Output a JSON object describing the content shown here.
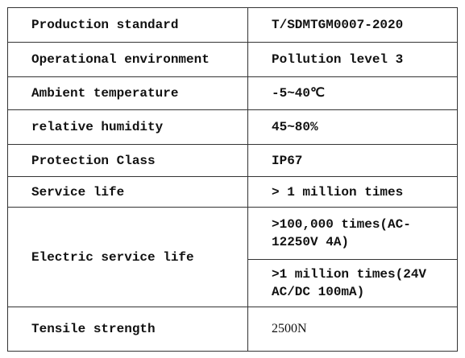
{
  "table": {
    "rows": [
      [
        "Production standard",
        "T/SDMTGM0007-2020"
      ],
      [
        "Operational environment",
        "Pollution level 3"
      ],
      [
        "Ambient temperature",
        "-5~40℃"
      ],
      [
        "relative humidity",
        "45~80%"
      ],
      [
        "Protection Class",
        "IP67"
      ],
      [
        "Service life",
        "> 1 million times"
      ],
      [
        "Electric service life",
        ">100,000 times(AC-12250V 4A)",
        ">1 million times(24V AC/DC 100mA)"
      ],
      [
        "Tensile strength",
        "2500N"
      ]
    ]
  }
}
